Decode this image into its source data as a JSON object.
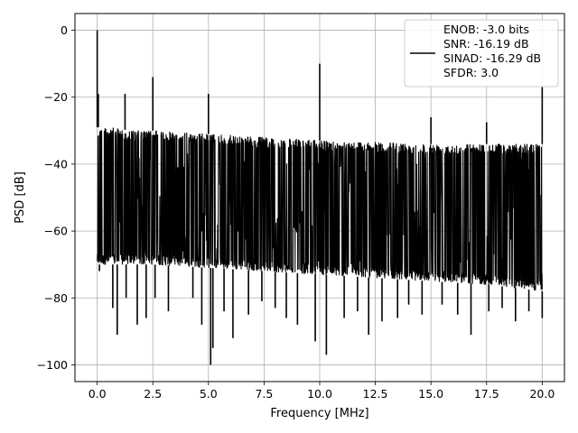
{
  "chart_data": {
    "type": "line",
    "title": "",
    "xlabel": "Frequency [MHz]",
    "ylabel": "PSD [dB]",
    "xlim": [
      -1.0,
      21.0
    ],
    "ylim": [
      -105,
      5
    ],
    "grid": true,
    "x_ticks": [
      0.0,
      2.5,
      5.0,
      7.5,
      10.0,
      12.5,
      15.0,
      17.5,
      20.0
    ],
    "x_tick_labels": [
      "0.0",
      "2.5",
      "5.0",
      "7.5",
      "10.0",
      "12.5",
      "15.0",
      "17.5",
      "20.0"
    ],
    "y_ticks": [
      0,
      -20,
      -40,
      -60,
      -80,
      -100
    ],
    "y_tick_labels": [
      "0",
      "−20",
      "−40",
      "−60",
      "−80",
      "−100"
    ],
    "legend": {
      "placement": "upper-right",
      "entries": [
        "ENOB: -3.0 bits",
        "SNR: -16.19 dB",
        "SINAD: -16.29 dB",
        "SFDR: 3.0"
      ]
    },
    "series": [
      {
        "color": "#000000",
        "noise_band": {
          "x": [
            0.0,
            0.5,
            1.5,
            2.5,
            5.0,
            7.5,
            10.0,
            12.5,
            15.0,
            17.5,
            20.0
          ],
          "upper": [
            -29,
            -29,
            -30,
            -30,
            -31,
            -32,
            -33,
            -33.5,
            -34,
            -34,
            -34
          ],
          "lower": [
            -70,
            -70,
            -70,
            -70,
            -71,
            -72,
            -73,
            -74,
            -75,
            -76,
            -78
          ]
        },
        "peaks": [
          {
            "x": 0.0,
            "y": 0
          },
          {
            "x": 0.05,
            "y": -19
          },
          {
            "x": 1.25,
            "y": -19
          },
          {
            "x": 2.5,
            "y": -14
          },
          {
            "x": 5.0,
            "y": -19
          },
          {
            "x": 10.0,
            "y": -10
          },
          {
            "x": 15.0,
            "y": -26
          },
          {
            "x": 17.5,
            "y": -27.5
          },
          {
            "x": 20.0,
            "y": -17
          }
        ],
        "dips": [
          {
            "x": 0.1,
            "y": -72
          },
          {
            "x": 0.7,
            "y": -83
          },
          {
            "x": 0.9,
            "y": -91
          },
          {
            "x": 1.3,
            "y": -80
          },
          {
            "x": 1.8,
            "y": -88
          },
          {
            "x": 2.2,
            "y": -86
          },
          {
            "x": 2.6,
            "y": -80
          },
          {
            "x": 3.2,
            "y": -84
          },
          {
            "x": 4.3,
            "y": -80
          },
          {
            "x": 4.7,
            "y": -88
          },
          {
            "x": 5.1,
            "y": -100
          },
          {
            "x": 5.2,
            "y": -95
          },
          {
            "x": 5.7,
            "y": -84
          },
          {
            "x": 6.1,
            "y": -92
          },
          {
            "x": 6.8,
            "y": -85
          },
          {
            "x": 7.4,
            "y": -81
          },
          {
            "x": 8.0,
            "y": -83
          },
          {
            "x": 8.5,
            "y": -86
          },
          {
            "x": 9.0,
            "y": -88
          },
          {
            "x": 9.8,
            "y": -93
          },
          {
            "x": 10.3,
            "y": -97
          },
          {
            "x": 11.1,
            "y": -86
          },
          {
            "x": 11.7,
            "y": -84
          },
          {
            "x": 12.2,
            "y": -91
          },
          {
            "x": 12.8,
            "y": -87
          },
          {
            "x": 13.5,
            "y": -86
          },
          {
            "x": 14.0,
            "y": -82
          },
          {
            "x": 14.6,
            "y": -85
          },
          {
            "x": 15.5,
            "y": -82
          },
          {
            "x": 16.2,
            "y": -85
          },
          {
            "x": 16.8,
            "y": -91
          },
          {
            "x": 17.6,
            "y": -84
          },
          {
            "x": 18.2,
            "y": -83
          },
          {
            "x": 18.8,
            "y": -87
          },
          {
            "x": 19.4,
            "y": -84
          },
          {
            "x": 20.0,
            "y": -86
          }
        ]
      }
    ]
  }
}
